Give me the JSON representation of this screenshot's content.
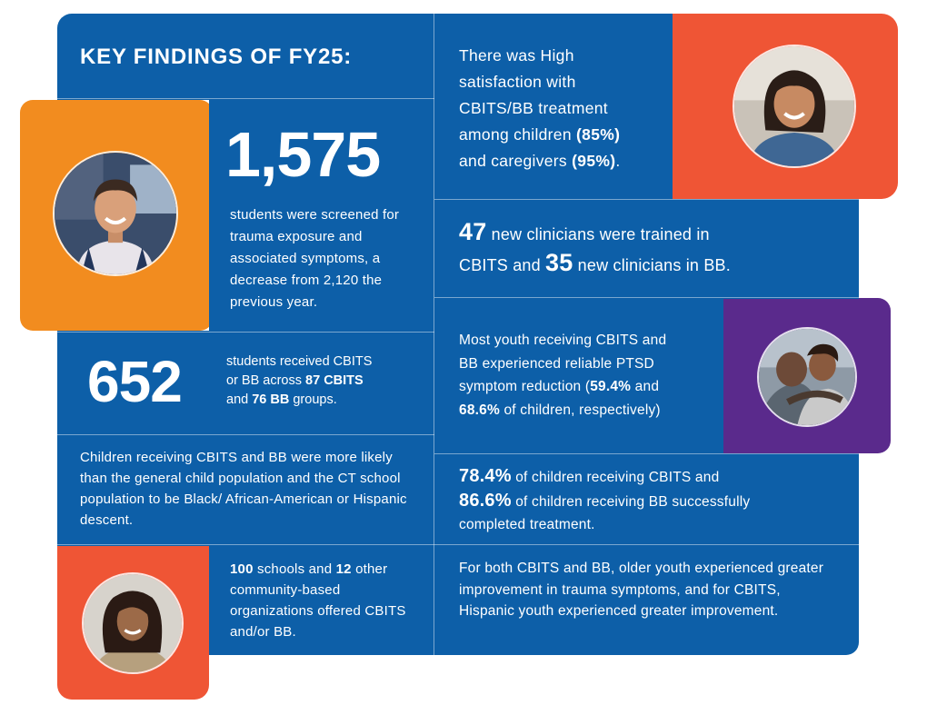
{
  "colors": {
    "blue": "#0d5fa8",
    "orange": "#f28c1f",
    "red_orange": "#ef5535",
    "purple": "#5a2a8c",
    "divider": "rgba(255,255,255,0.45)"
  },
  "title": "KEY FINDINGS OF FY25:",
  "screened": {
    "number": "1,575",
    "text": "students were screened for trauma exposure and associated symptoms, a decrease from 2,120 the previous year."
  },
  "received": {
    "number": "652",
    "line1": "students received CBITS",
    "line2_pre": "or BB across ",
    "line2_bold": "87 CBITS",
    "line3_pre": "and ",
    "line3_bold": "76 BB",
    "line3_post": " groups."
  },
  "demographics": {
    "text": "Children receiving CBITS and BB were more likely than the general child population and the CT school population to be Black/ African-American or Hispanic descent."
  },
  "schools": {
    "n1": "100",
    "t1": " schools and ",
    "n2": "12",
    "t2": " other community-based organizations offered CBITS and/or BB."
  },
  "satisfaction": {
    "line1": "There was High",
    "line2": "satisfaction with",
    "line3": "CBITS/BB treatment",
    "line4_pre": "among children ",
    "line4_bold": "(85%)",
    "line5_pre": "and caregivers ",
    "line5_bold": "(95%)",
    "line5_post": "."
  },
  "clinicians": {
    "n1": "47",
    "t1": " new clinicians were trained in",
    "t2": "CBITS and ",
    "n2": "35",
    "t3": " new clinicians in BB."
  },
  "ptsd": {
    "line1": "Most youth receiving CBITS and",
    "line2": "BB experienced reliable PTSD",
    "line3_pre": "symptom reduction (",
    "line3_bold": "59.4%",
    "line3_post": " and",
    "line4_bold": "68.6%",
    "line4_post": " of children, respectively)"
  },
  "completion": {
    "n1": "78.4%",
    "t1": " of children receiving CBITS and",
    "n2": "86.6%",
    "t2": " of children receiving BB successfully",
    "t3": "completed treatment."
  },
  "older": {
    "text": "For both CBITS and BB, older youth experienced greater improvement in trauma symptoms, and for CBITS, Hispanic youth experienced greater improvement."
  },
  "photos": {
    "boy": "smiling-boy-photo",
    "girl_top": "smiling-girl-photo",
    "hug": "hug-photo",
    "girl_bottom": "smiling-teen-girl-photo"
  }
}
